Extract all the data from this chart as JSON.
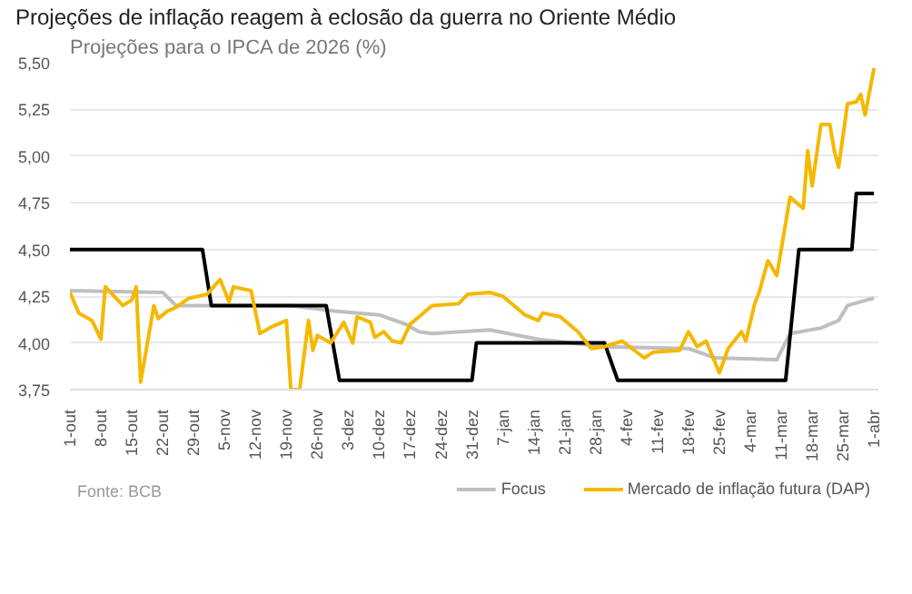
{
  "chart_data": {
    "type": "line",
    "title": "Projeções de inflação reagem à eclosão da guerra no Oriente Médio",
    "subtitle": "Projeções para o IPCA de 2026 (%)",
    "annotations": [
      "Fonte: BCB"
    ],
    "xlim": [
      "2025-10-01",
      "2026-04-02"
    ],
    "xticks": [
      {
        "value": "2025-10-01",
        "label": "1-out"
      },
      {
        "value": "2025-10-08",
        "label": "8-out"
      },
      {
        "value": "2025-10-15",
        "label": "15-out"
      },
      {
        "value": "2025-10-22",
        "label": "22-out"
      },
      {
        "value": "2025-10-29",
        "label": "29-out"
      },
      {
        "value": "2025-11-05",
        "label": "5-nov"
      },
      {
        "value": "2025-11-12",
        "label": "12-nov"
      },
      {
        "value": "2025-11-19",
        "label": "19-nov"
      },
      {
        "value": "2025-11-26",
        "label": "26-nov"
      },
      {
        "value": "2025-12-03",
        "label": "3-dez"
      },
      {
        "value": "2025-12-10",
        "label": "10-dez"
      },
      {
        "value": "2025-12-17",
        "label": "17-dez"
      },
      {
        "value": "2025-12-24",
        "label": "24-dez"
      },
      {
        "value": "2025-12-31",
        "label": "31-dez"
      },
      {
        "value": "2026-01-07",
        "label": "7-jan"
      },
      {
        "value": "2026-01-14",
        "label": "14-jan"
      },
      {
        "value": "2026-01-21",
        "label": "21-jan"
      },
      {
        "value": "2026-01-28",
        "label": "28-jan"
      },
      {
        "value": "2026-02-04",
        "label": "4-fev"
      },
      {
        "value": "2026-02-11",
        "label": "11-fev"
      },
      {
        "value": "2026-02-18",
        "label": "18-fev"
      },
      {
        "value": "2026-02-25",
        "label": "25-fev"
      },
      {
        "value": "2026-03-04",
        "label": "4-mar"
      },
      {
        "value": "2026-03-11",
        "label": "11-mar"
      },
      {
        "value": "2026-03-18",
        "label": "18-mar"
      },
      {
        "value": "2026-03-25",
        "label": "25-mar"
      },
      {
        "value": "2026-04-01",
        "label": "1-abr"
      }
    ],
    "ylim": [
      3.75,
      5.5
    ],
    "yticks": [
      {
        "value": 3.75,
        "label": "3,75"
      },
      {
        "value": 4.0,
        "label": "4,00"
      },
      {
        "value": 4.25,
        "label": "4,25"
      },
      {
        "value": 4.5,
        "label": "4,50"
      },
      {
        "value": 4.75,
        "label": "4,75"
      },
      {
        "value": 5.0,
        "label": "5,00"
      },
      {
        "value": 5.25,
        "label": "5,25"
      },
      {
        "value": 5.5,
        "label": "5,50"
      }
    ],
    "grid": "y",
    "legend": "bottom",
    "series": [
      {
        "name": "Focus",
        "color": "#bfbfbf",
        "x": [
          "2025-10-01",
          "2025-10-22",
          "2025-10-25",
          "2025-11-20",
          "2025-11-30",
          "2025-12-10",
          "2025-12-16",
          "2025-12-19",
          "2025-12-22",
          "2026-01-04",
          "2026-01-15",
          "2026-01-30",
          "2026-02-18",
          "2026-02-24",
          "2026-03-10",
          "2026-03-13",
          "2026-03-20",
          "2026-03-24",
          "2026-03-26",
          "2026-04-01"
        ],
        "values": [
          4.28,
          4.27,
          4.2,
          4.2,
          4.17,
          4.15,
          4.1,
          4.06,
          4.05,
          4.07,
          4.02,
          3.98,
          3.97,
          3.92,
          3.91,
          4.05,
          4.08,
          4.12,
          4.2,
          4.24
        ]
      },
      {
        "color": "#000000",
        "x": [
          "2025-10-01",
          "2025-10-31",
          "2025-11-02",
          "2025-11-28",
          "2025-12-01",
          "2025-12-31",
          "2026-01-01",
          "2026-01-30",
          "2026-02-02",
          "2026-03-12",
          "2026-03-15",
          "2026-03-27",
          "2026-03-28",
          "2026-04-01"
        ],
        "values": [
          4.5,
          4.5,
          4.2,
          4.2,
          3.8,
          3.8,
          4.0,
          4.0,
          3.8,
          3.8,
          4.5,
          4.5,
          4.8,
          4.8
        ]
      },
      {
        "name": "Mercado de inflação futura (DAP)",
        "color": "#f5b800",
        "x": [
          "2025-10-01",
          "2025-10-03",
          "2025-10-06",
          "2025-10-08",
          "2025-10-09",
          "2025-10-13",
          "2025-10-15",
          "2025-10-16",
          "2025-10-17",
          "2025-10-20",
          "2025-10-21",
          "2025-10-23",
          "2025-10-25",
          "2025-10-28",
          "2025-11-01",
          "2025-11-04",
          "2025-11-06",
          "2025-11-07",
          "2025-11-11",
          "2025-11-13",
          "2025-11-16",
          "2025-11-19",
          "2025-11-20",
          "2025-11-22",
          "2025-11-24",
          "2025-11-25",
          "2025-11-26",
          "2025-11-29",
          "2025-12-02",
          "2025-12-04",
          "2025-12-05",
          "2025-12-08",
          "2025-12-09",
          "2025-12-11",
          "2025-12-13",
          "2025-12-15",
          "2025-12-17",
          "2025-12-22",
          "2025-12-28",
          "2025-12-30",
          "2026-01-04",
          "2026-01-07",
          "2026-01-12",
          "2026-01-15",
          "2026-01-16",
          "2026-01-20",
          "2026-01-24",
          "2026-01-27",
          "2026-01-30",
          "2026-02-03",
          "2026-02-08",
          "2026-02-10",
          "2026-02-16",
          "2026-02-18",
          "2026-02-20",
          "2026-02-22",
          "2026-02-25",
          "2026-02-27",
          "2026-03-02",
          "2026-03-03",
          "2026-03-05",
          "2026-03-06",
          "2026-03-08",
          "2026-03-10",
          "2026-03-13",
          "2026-03-16",
          "2026-03-17",
          "2026-03-18",
          "2026-03-20",
          "2026-03-22",
          "2026-03-23",
          "2026-03-24",
          "2026-03-26",
          "2026-03-28",
          "2026-03-29",
          "2026-03-30",
          "2026-04-01"
        ],
        "values": [
          4.27,
          4.16,
          4.12,
          4.02,
          4.3,
          4.2,
          4.23,
          4.3,
          3.79,
          4.2,
          4.13,
          4.17,
          4.19,
          4.24,
          4.26,
          4.34,
          4.22,
          4.3,
          4.28,
          4.05,
          4.09,
          4.12,
          3.75,
          3.75,
          4.12,
          3.96,
          4.04,
          4.0,
          4.11,
          4.0,
          4.14,
          4.11,
          4.03,
          4.06,
          4.01,
          4.0,
          4.1,
          4.2,
          4.21,
          4.26,
          4.27,
          4.25,
          4.15,
          4.12,
          4.16,
          4.14,
          4.06,
          3.97,
          3.98,
          4.01,
          3.92,
          3.95,
          3.96,
          4.06,
          3.98,
          4.01,
          3.84,
          3.97,
          4.06,
          4.01,
          4.21,
          4.27,
          4.44,
          4.36,
          4.78,
          4.72,
          5.03,
          4.84,
          5.17,
          5.17,
          5.03,
          4.94,
          5.28,
          5.29,
          5.33,
          5.22,
          5.47
        ]
      }
    ]
  }
}
